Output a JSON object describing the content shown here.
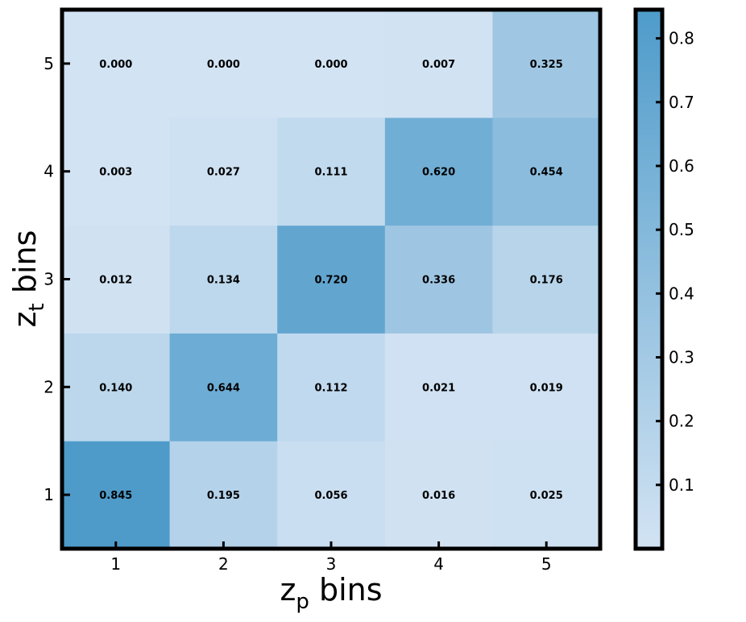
{
  "chart_data": {
    "type": "heatmap",
    "x_categories": [
      "1",
      "2",
      "3",
      "4",
      "5"
    ],
    "y_categories": [
      "1",
      "2",
      "3",
      "4",
      "5"
    ],
    "xlabel_base": "z",
    "xlabel_sub": "p",
    "xlabel_suffix": " bins",
    "ylabel_base": "z",
    "ylabel_sub": "t",
    "ylabel_suffix": " bins",
    "matrix": [
      [
        0.845,
        0.195,
        0.056,
        0.016,
        0.025
      ],
      [
        0.14,
        0.644,
        0.112,
        0.021,
        0.019
      ],
      [
        0.012,
        0.134,
        0.72,
        0.336,
        0.176
      ],
      [
        0.003,
        0.027,
        0.111,
        0.62,
        0.454
      ],
      [
        0.0,
        0.0,
        0.0,
        0.007,
        0.325
      ]
    ],
    "cell_labels": [
      [
        "0.845",
        "0.195",
        "0.056",
        "0.016",
        "0.025"
      ],
      [
        "0.140",
        "0.644",
        "0.112",
        "0.021",
        "0.019"
      ],
      [
        "0.012",
        "0.134",
        "0.720",
        "0.336",
        "0.176"
      ],
      [
        "0.003",
        "0.027",
        "0.111",
        "0.620",
        "0.454"
      ],
      [
        "0.000",
        "0.000",
        "0.000",
        "0.007",
        "0.325"
      ]
    ],
    "colorbar": {
      "min": 0.0,
      "max": 0.845,
      "ticks": [
        0.1,
        0.2,
        0.3,
        0.4,
        0.5,
        0.6,
        0.7,
        0.8
      ],
      "tick_labels": [
        "0.1",
        "0.2",
        "0.3",
        "0.4",
        "0.5",
        "0.6",
        "0.7",
        "0.8"
      ],
      "color_low": "#d2e3f3",
      "color_high": "#4e9bca"
    }
  }
}
